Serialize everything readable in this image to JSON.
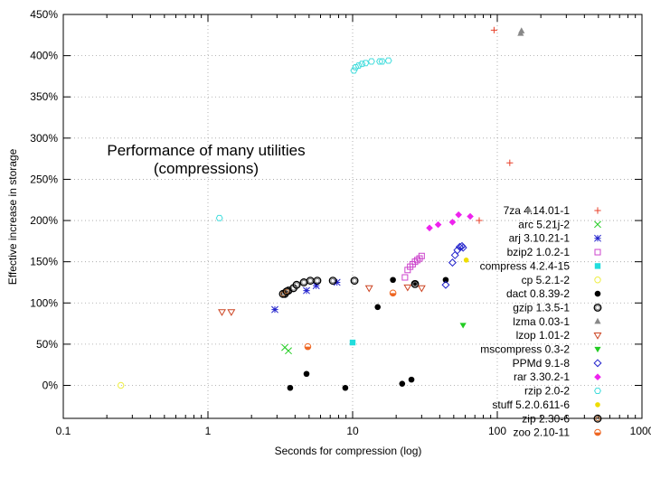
{
  "chart_data": {
    "type": "scatter",
    "title": "Performance of many utilities",
    "subtitle": "(compressions)",
    "xlabel": "Seconds for compression (log)",
    "ylabel": "Effective increase in storage",
    "xscale": "log",
    "xlim": [
      0.1,
      1000
    ],
    "ylim": [
      -40,
      450
    ],
    "x_ticks": [
      "0.1",
      "1",
      "10",
      "100",
      "1000"
    ],
    "y_ticks": [
      "0%",
      "50%",
      "100%",
      "150%",
      "200%",
      "250%",
      "300%",
      "350%",
      "400%",
      "450%"
    ],
    "grid": true,
    "legend_position": "right",
    "series": [
      {
        "name": "7za 4.14.01-1",
        "marker": "plus",
        "color": "#e8402a",
        "points": [
          [
            95,
            431
          ],
          [
            122,
            270
          ],
          [
            75,
            200
          ]
        ]
      },
      {
        "name": "arc 5.21j-2",
        "marker": "cross",
        "color": "#22cc22",
        "points": [
          [
            3.4,
            46
          ],
          [
            3.6,
            42
          ]
        ]
      },
      {
        "name": "arj 3.10.21-1",
        "marker": "star",
        "color": "#2222cc",
        "points": [
          [
            2.9,
            92
          ],
          [
            4.8,
            115
          ],
          [
            5.6,
            121
          ],
          [
            7.8,
            125
          ]
        ]
      },
      {
        "name": "bzip2 1.0.2-1",
        "marker": "square-open",
        "color": "#cc44cc",
        "points": [
          [
            23,
            131
          ],
          [
            24,
            140
          ],
          [
            25,
            144
          ],
          [
            26,
            147
          ],
          [
            27,
            150
          ],
          [
            28,
            152
          ],
          [
            29,
            154
          ],
          [
            30,
            157
          ]
        ]
      },
      {
        "name": "compress 4.2.4-15",
        "marker": "square-filled",
        "color": "#22dddd",
        "points": [
          [
            10,
            52
          ]
        ]
      },
      {
        "name": "cp 5.2.1-2",
        "marker": "circle-open",
        "color": "#eeee44",
        "points": [
          [
            0.25,
            0
          ]
        ]
      },
      {
        "name": "dact 0.8.39-2",
        "marker": "circle-filled",
        "color": "#000000",
        "points": [
          [
            3.7,
            -3
          ],
          [
            4.8,
            14
          ],
          [
            8.9,
            -3
          ],
          [
            14.9,
            95
          ],
          [
            19,
            128
          ],
          [
            22,
            2
          ],
          [
            25.5,
            7
          ],
          [
            27,
            124
          ],
          [
            44,
            128
          ]
        ]
      },
      {
        "name": "gzip 1.3.5-1",
        "marker": "circle-double",
        "color": "#000000",
        "points": [
          [
            3.4,
            111
          ],
          [
            3.6,
            115
          ],
          [
            3.9,
            118
          ],
          [
            4.1,
            122
          ],
          [
            4.6,
            125
          ],
          [
            5.1,
            127
          ],
          [
            5.7,
            127
          ],
          [
            7.3,
            127
          ],
          [
            10.3,
            127
          ],
          [
            27,
            123
          ]
        ]
      },
      {
        "name": "lzma 0.03-1",
        "marker": "triangle-up",
        "color": "#888888",
        "points": [
          [
            147,
            430
          ],
          [
            145,
            427
          ],
          [
            165,
            213
          ]
        ]
      },
      {
        "name": "lzop 1.01-2",
        "marker": "triangle-down-open",
        "color": "#cc4422",
        "points": [
          [
            1.25,
            89
          ],
          [
            1.45,
            89
          ],
          [
            13,
            118
          ],
          [
            24,
            119
          ],
          [
            30,
            118
          ]
        ]
      },
      {
        "name": "mscompress 0.3-2",
        "marker": "triangle-down-filled",
        "color": "#22cc22",
        "points": [
          [
            58,
            73
          ]
        ]
      },
      {
        "name": "PPMd 9.1-8",
        "marker": "diamond-open",
        "color": "#2222cc",
        "points": [
          [
            44,
            122
          ],
          [
            49,
            149
          ],
          [
            51,
            158
          ],
          [
            53,
            164
          ],
          [
            55,
            168
          ],
          [
            57,
            169
          ],
          [
            58,
            167
          ]
        ]
      },
      {
        "name": "rar 3.30.2-1",
        "marker": "diamond-filled",
        "color": "#ee22ee",
        "points": [
          [
            34,
            191
          ],
          [
            39,
            195
          ],
          [
            49,
            198
          ],
          [
            54,
            207
          ],
          [
            65,
            205
          ]
        ]
      },
      {
        "name": "rzip 2.0-2",
        "marker": "hexagon-open",
        "color": "#44dddd",
        "points": [
          [
            1.2,
            203
          ],
          [
            10.2,
            382
          ],
          [
            10.5,
            386
          ],
          [
            11,
            388
          ],
          [
            11.6,
            390
          ],
          [
            12.3,
            391
          ],
          [
            13.5,
            393
          ],
          [
            15.4,
            393
          ],
          [
            16,
            393
          ],
          [
            17.7,
            394
          ]
        ]
      },
      {
        "name": "stuff 5.2.0.611-6",
        "marker": "circle-filled-small",
        "color": "#eedd00",
        "points": [
          [
            61,
            152
          ]
        ]
      },
      {
        "name": "zip 2.30-6",
        "marker": "circle-double",
        "color": "#442200",
        "points": [
          [
            3.3,
            111
          ],
          [
            3.5,
            114
          ]
        ]
      },
      {
        "name": "zoo 2.10-11",
        "marker": "circle-half",
        "color": "#ee6622",
        "points": [
          [
            4.9,
            47
          ],
          [
            19,
            112
          ]
        ]
      }
    ]
  }
}
